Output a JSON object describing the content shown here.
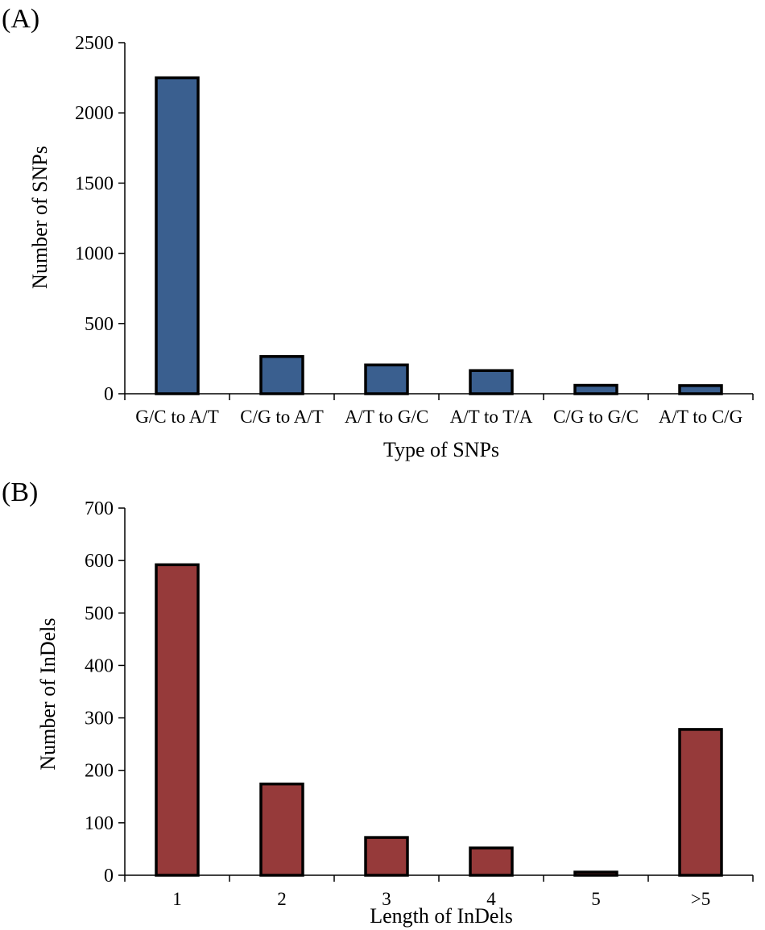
{
  "chart_data": [
    {
      "panel_label": "(A)",
      "type": "bar",
      "categories": [
        "G/C to A/T",
        "C/G to A/T",
        "A/T to G/C",
        "A/T to T/A",
        "C/G to G/C",
        "A/T to C/G"
      ],
      "values": [
        2250,
        265,
        205,
        165,
        60,
        58
      ],
      "xlabel": "Type of SNPs",
      "ylabel": "Number of SNPs",
      "ylim": [
        0,
        2500
      ],
      "yticks": [
        "0",
        "500",
        "1000",
        "1500",
        "2000",
        "2500"
      ],
      "bar_color": "#3a5f8f",
      "grid": false
    },
    {
      "panel_label": "(B)",
      "type": "bar",
      "categories": [
        "1",
        "2",
        "3",
        "4",
        "5",
        ">5"
      ],
      "values": [
        592,
        174,
        72,
        52,
        6,
        278
      ],
      "xlabel": "Length of InDels",
      "ylabel": "Number of InDels",
      "ylim": [
        0,
        700
      ],
      "yticks": [
        "0",
        "100",
        "200",
        "300",
        "400",
        "500",
        "600",
        "700"
      ],
      "bar_color": "#963a3a",
      "grid": false
    }
  ]
}
